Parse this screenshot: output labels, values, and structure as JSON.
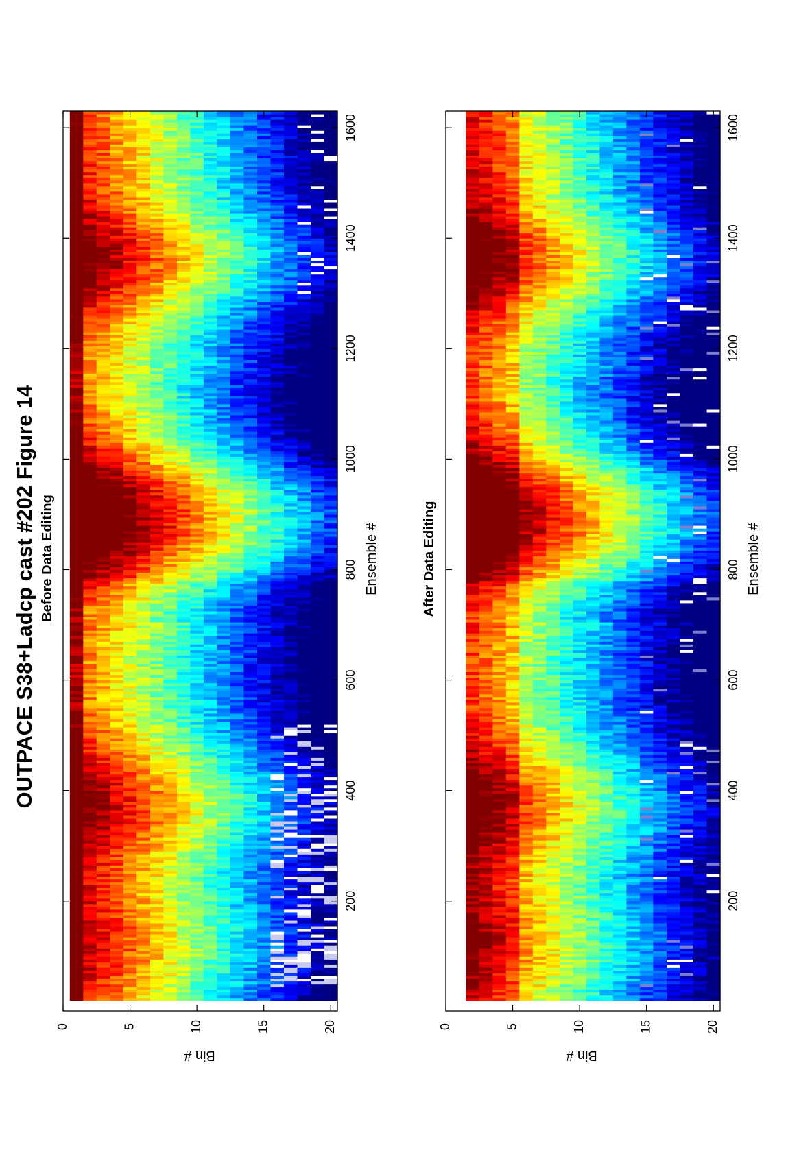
{
  "figure": {
    "title": "OUTPACE S38+Ladcp cast #202  Figure 14"
  },
  "colormap": "jet",
  "chart_data": [
    {
      "type": "heatmap",
      "title": "Before Data Editing",
      "xlabel": "Ensemble #",
      "ylabel": "Bin #",
      "xlim": [
        1,
        1630
      ],
      "ylim": [
        0,
        20.5
      ],
      "x_ticks": [
        "200",
        "400",
        "600",
        "800",
        "1000",
        "1200",
        "1400",
        "1600"
      ],
      "y_ticks": [
        "0",
        "5",
        "10",
        "15",
        "20"
      ],
      "grid": false,
      "colorbar": false,
      "bins": 20,
      "blanked_cells": "many (bins 16-20, ensembles 30-520)"
    },
    {
      "type": "heatmap",
      "title": "After Data Editing",
      "xlabel": "Ensemble #",
      "ylabel": "Bin #",
      "xlim": [
        1,
        1630
      ],
      "ylim": [
        0,
        20.5
      ],
      "x_ticks": [
        "200",
        "400",
        "600",
        "800",
        "1000",
        "1200",
        "1400",
        "1600"
      ],
      "y_ticks": [
        "0",
        "5",
        "10",
        "15",
        "20"
      ],
      "grid": false,
      "colorbar": false,
      "bins": 20,
      "blanked_cells": "few (scattered)"
    }
  ]
}
